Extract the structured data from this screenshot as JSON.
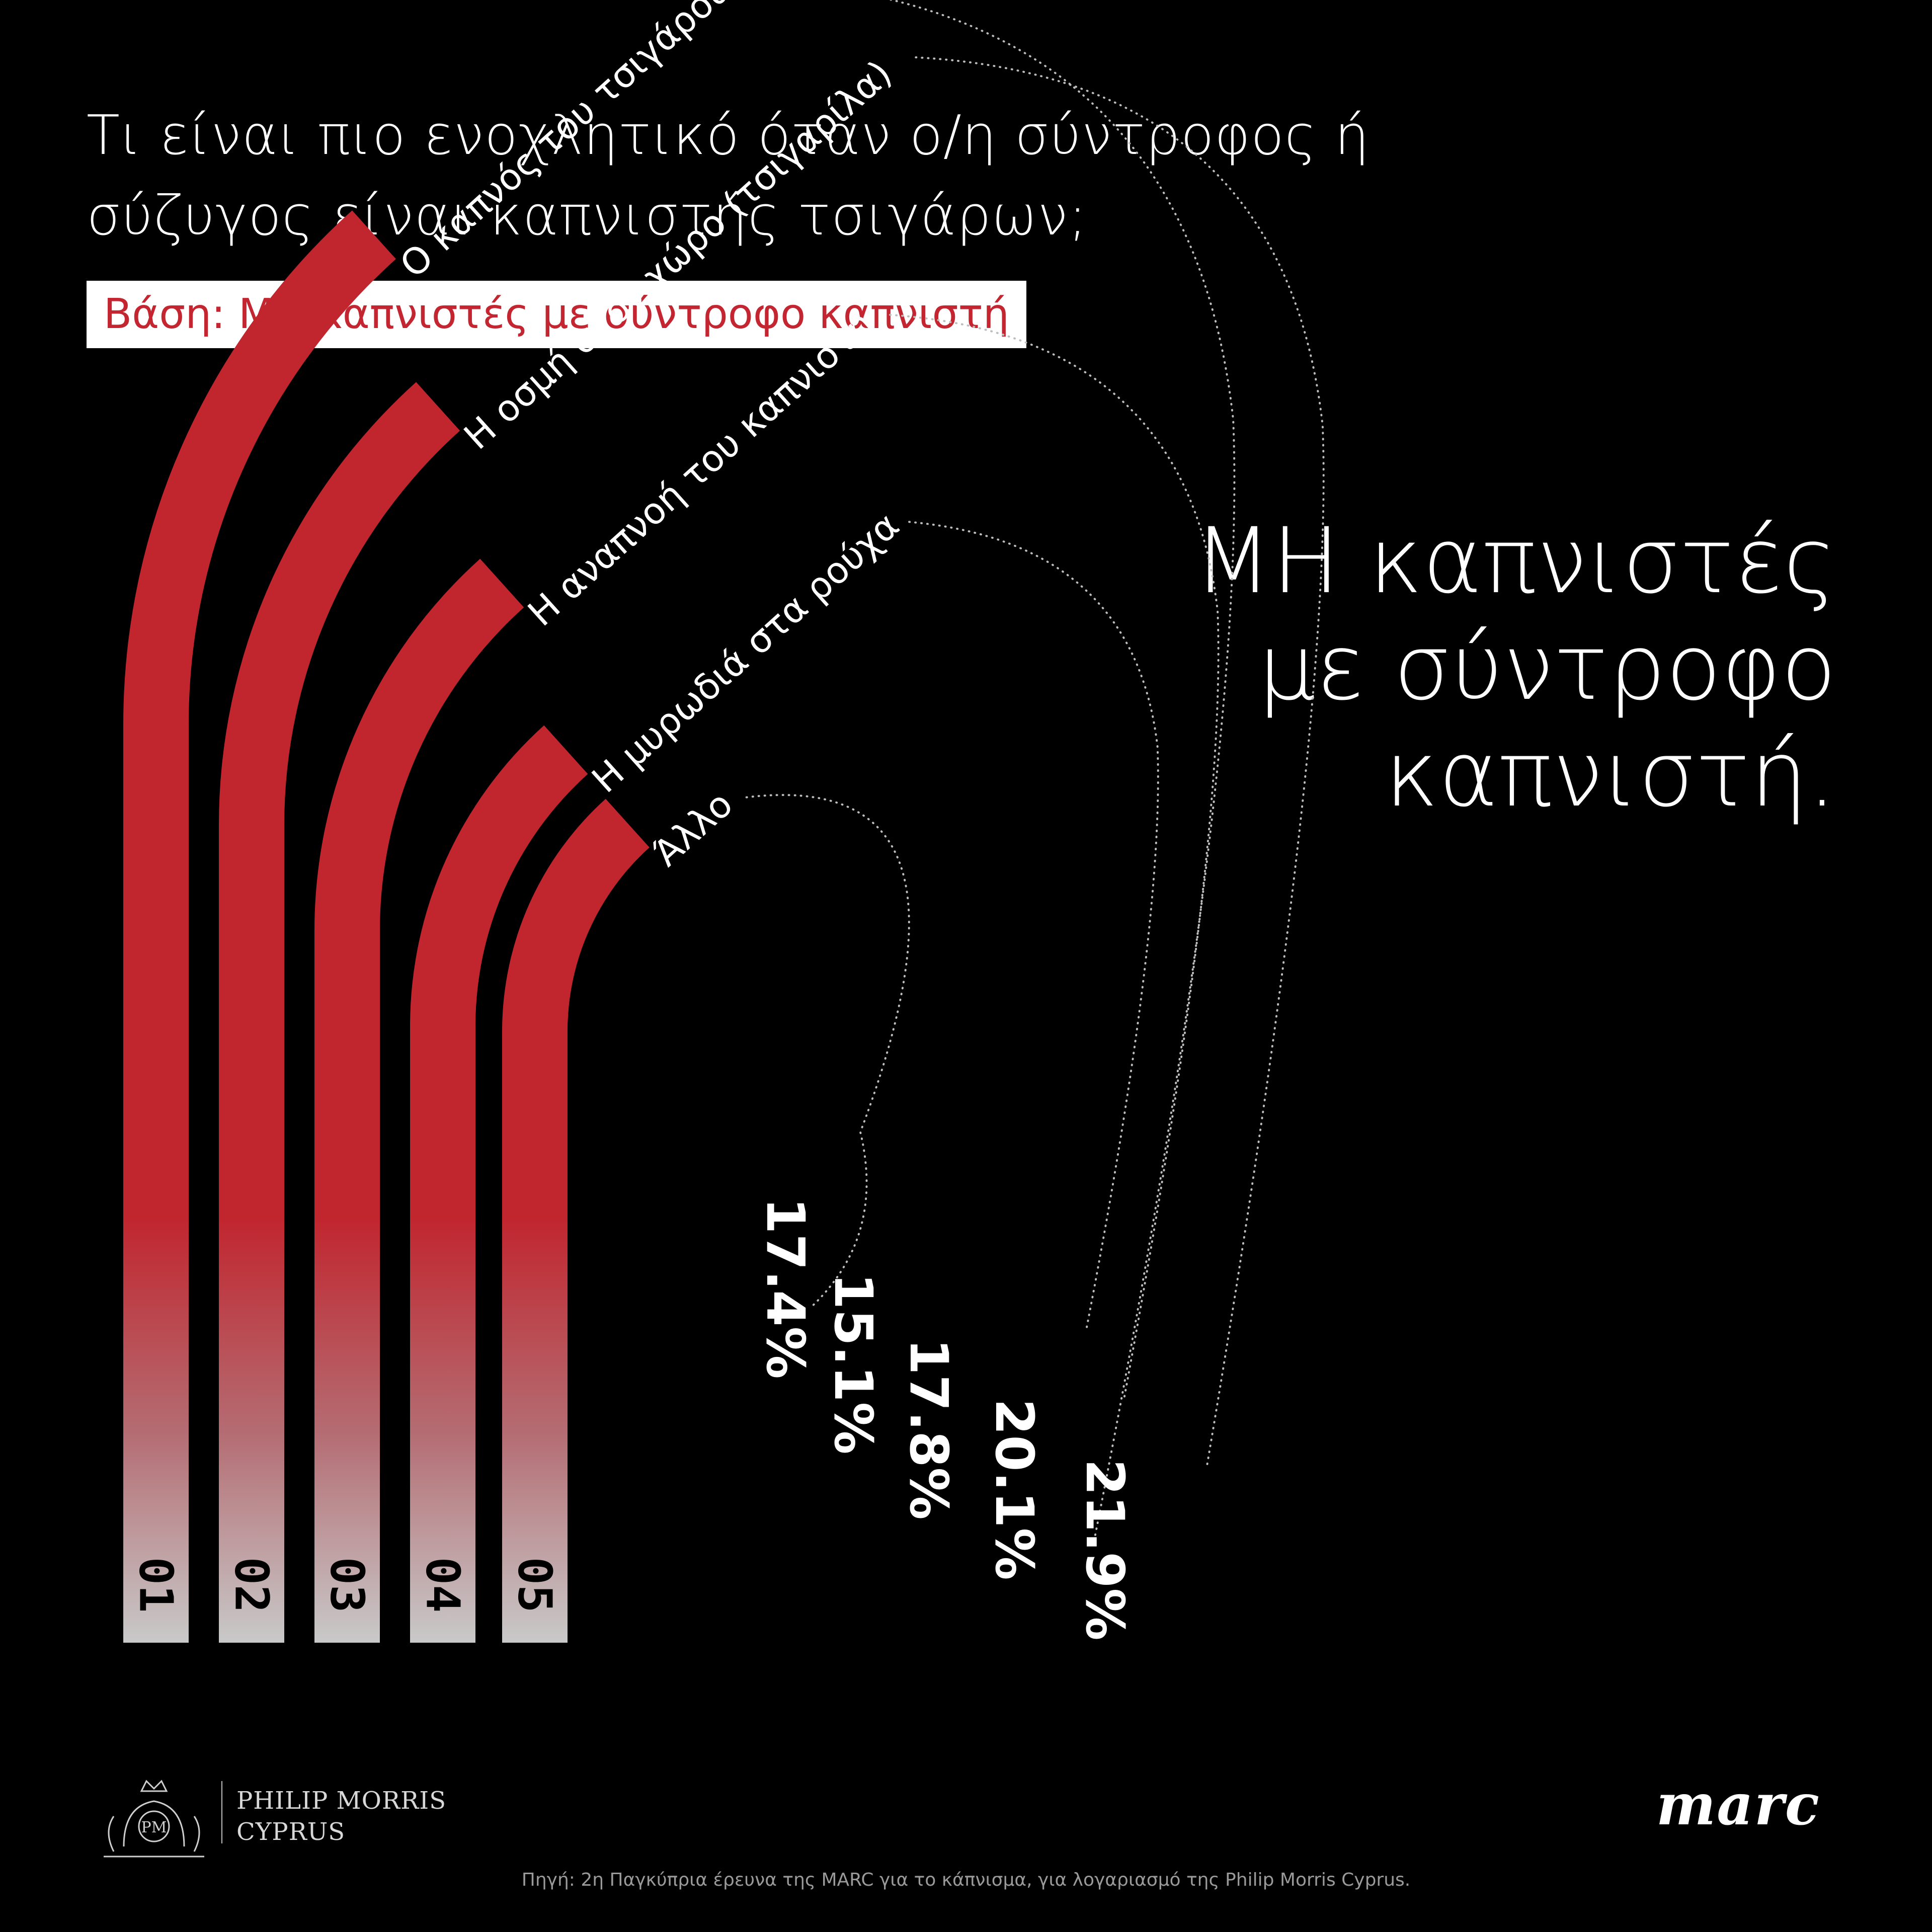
{
  "header": {
    "title_line1": "Τι είναι πιο ενοχλητικό όταν ο/η σύντροφος ή",
    "title_line2": "σύζυγος είναι καπνιστής τσιγάρων;",
    "base": "Βάση: ΜΗ καπνιστές με σύντροφο καπνιστή"
  },
  "highlight": {
    "line1": "ΜΗ καπνιστές",
    "line2": "με σύντροφο",
    "line3": "καπνιστή."
  },
  "chart_data": {
    "type": "bar",
    "categories": [
      "Ο καπνός του τσιγάρου",
      "Η οσμή στον χώρο (τσιγαρίλα)",
      "Η αναπνοή του καπνιστή",
      "Η μυρωδιά στα ρούχα",
      "Άλλο"
    ],
    "ranks": [
      "01",
      "02",
      "03",
      "04",
      "05"
    ],
    "values": [
      21.9,
      20.1,
      17.8,
      15.1,
      17.4
    ],
    "value_labels": [
      "21.9%",
      "20.1%",
      "17.8%",
      "15.1%",
      "17.4%"
    ],
    "unit": "%",
    "colors": {
      "bar_top": "#c1262f",
      "bar_bottom": "#c8c8c8",
      "dots": "#bdbdbd"
    }
  },
  "footer": {
    "brand_line1": "PHILIP MORRIS",
    "brand_line2": "CYPRUS",
    "marc_logo": "marc",
    "source": "Πηγή: 2η Παγκύπρια έρευνα της MARC για το κάπνισμα, για λογαριασμό της Philip Morris Cyprus."
  }
}
